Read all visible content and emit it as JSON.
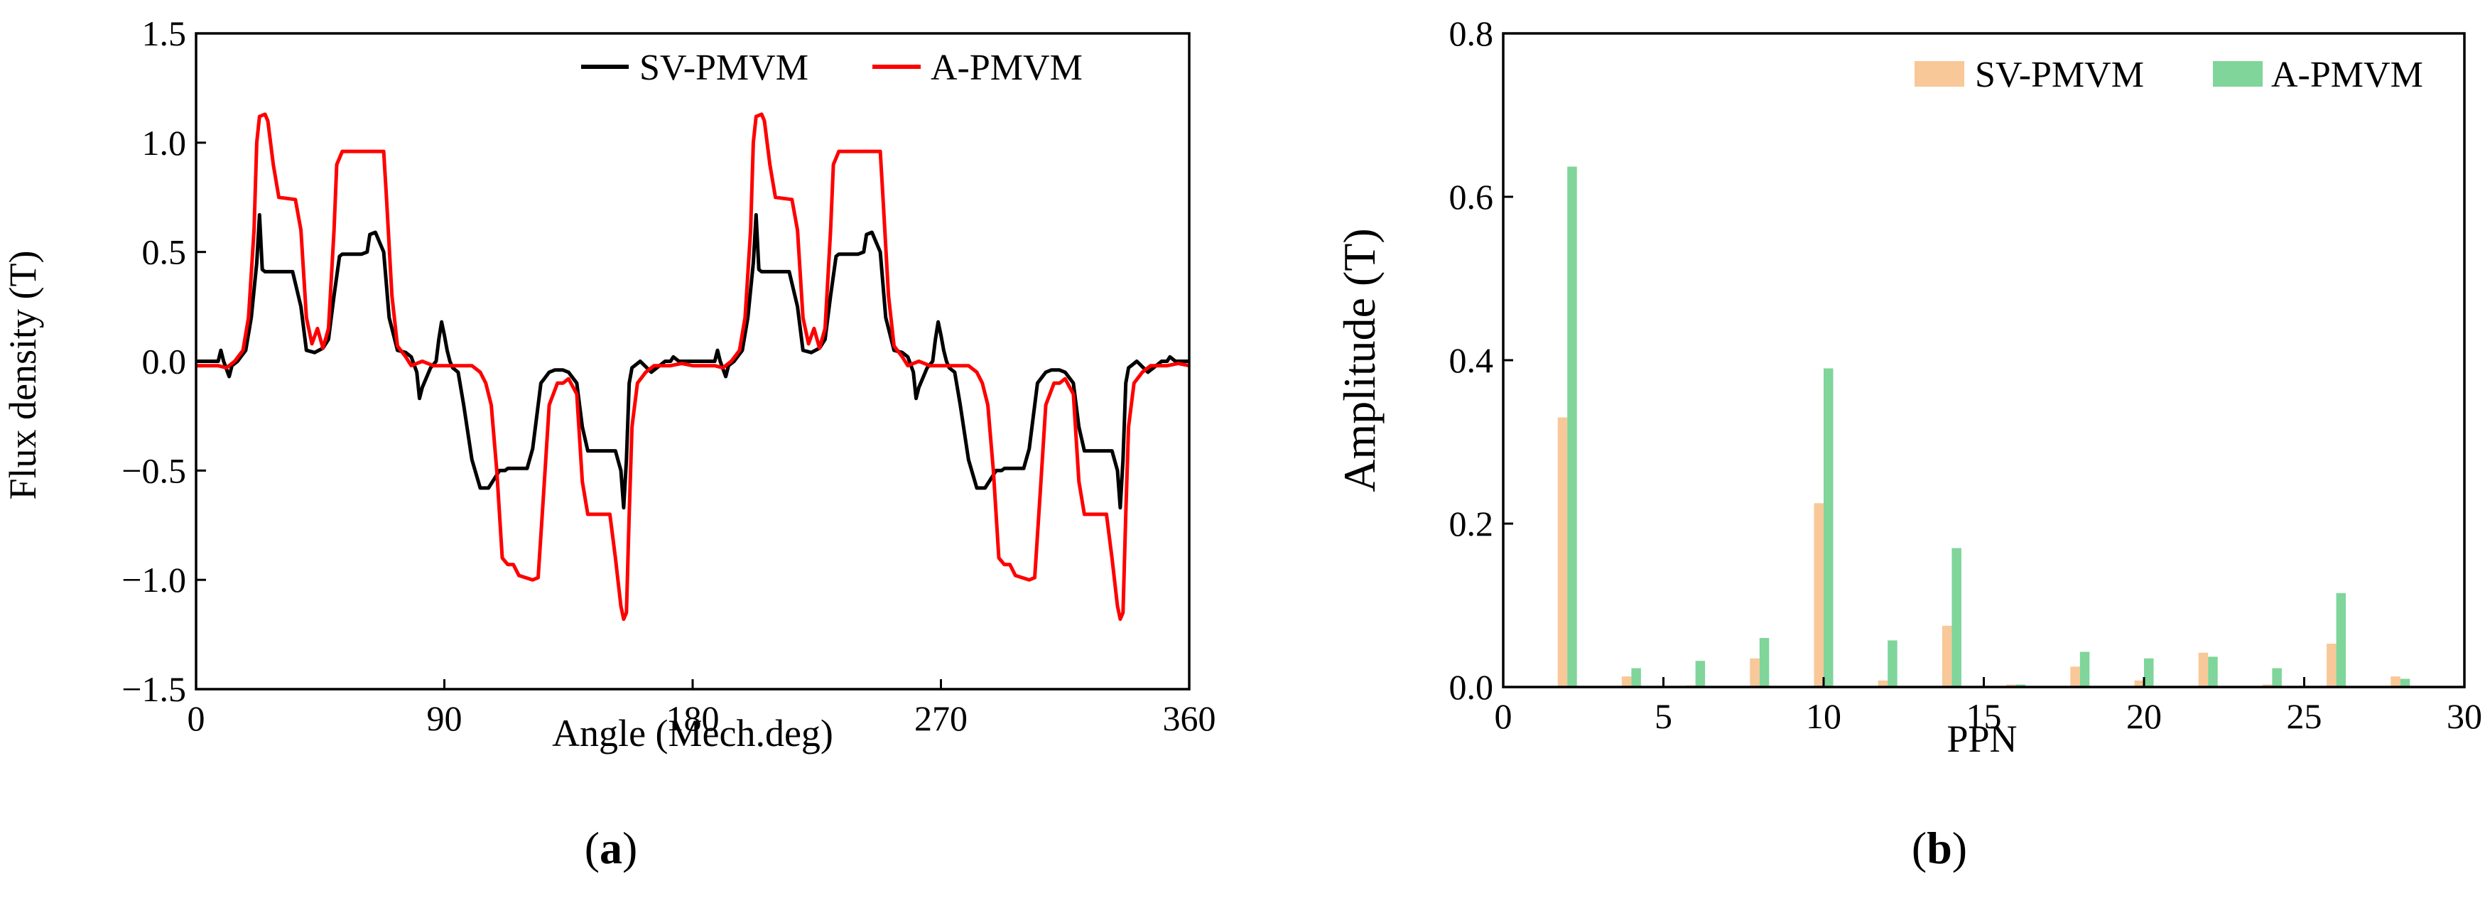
{
  "chart_data": [
    {
      "type": "line",
      "panel_label": "a",
      "xlabel": "Angle (Mech.deg)",
      "ylabel": "Flux density (T)",
      "xlim": [
        0,
        360
      ],
      "ylim": [
        -1.5,
        1.5
      ],
      "xticks": [
        "0",
        "90",
        "180",
        "270",
        "360"
      ],
      "yticks": [
        "1.5",
        "1.0",
        "0.5",
        "0.0",
        "−0.5",
        "−1.0",
        "−1.5"
      ],
      "legend_position": "top-right",
      "series": [
        {
          "name": "SV-PMVM",
          "color": "#000000",
          "x": [
            0,
            8,
            9,
            10,
            12,
            13,
            15,
            18,
            20,
            22,
            23,
            24,
            25,
            27,
            35,
            38,
            40,
            43,
            46,
            48,
            50,
            52,
            53,
            60,
            62,
            63,
            65,
            68,
            70,
            73,
            76,
            78,
            80,
            81,
            82,
            85,
            87,
            88,
            89,
            90,
            91,
            92,
            93,
            95,
            97,
            100,
            103,
            106,
            110,
            112,
            113,
            115,
            120,
            122,
            125,
            128,
            130,
            133,
            135,
            138,
            140,
            142,
            145,
            150,
            152,
            154,
            155,
            156,
            157,
            158,
            161,
            165,
            170,
            172,
            173,
            175,
            180
          ],
          "y": [
            0.0,
            0.0,
            0.05,
            0.0,
            -0.07,
            -0.02,
            0.0,
            0.05,
            0.2,
            0.45,
            0.67,
            0.42,
            0.41,
            0.41,
            0.41,
            0.25,
            0.05,
            0.04,
            0.06,
            0.1,
            0.3,
            0.48,
            0.49,
            0.49,
            0.5,
            0.58,
            0.59,
            0.5,
            0.2,
            0.05,
            0.04,
            0.02,
            -0.05,
            -0.17,
            -0.12,
            -0.03,
            0.0,
            0.1,
            0.18,
            0.12,
            0.05,
            0.0,
            -0.03,
            -0.05,
            -0.2,
            -0.45,
            -0.58,
            -0.58,
            -0.5,
            -0.5,
            -0.49,
            -0.49,
            -0.49,
            -0.4,
            -0.1,
            -0.05,
            -0.04,
            -0.04,
            -0.05,
            -0.1,
            -0.3,
            -0.41,
            -0.41,
            -0.41,
            -0.41,
            -0.5,
            -0.67,
            -0.45,
            -0.1,
            -0.03,
            0.0,
            -0.05,
            0.0,
            0.0,
            0.02,
            0.0,
            0.0
          ]
        },
        {
          "name": "A-PMVM",
          "color": "#ff0000",
          "x": [
            0,
            8,
            11,
            14,
            17,
            19,
            21,
            22,
            23,
            25,
            26,
            28,
            30,
            36,
            38,
            40,
            42,
            44,
            46,
            48,
            50,
            51,
            53,
            60,
            68,
            69,
            71,
            73,
            76,
            78,
            80,
            82,
            84,
            86,
            88,
            91,
            93,
            95,
            97,
            100,
            103,
            105,
            107,
            109,
            111,
            113,
            115,
            117,
            122,
            124,
            126,
            128,
            131,
            133,
            135,
            138,
            140,
            142,
            144,
            146,
            150,
            152,
            154,
            155,
            156,
            157,
            158,
            160,
            163,
            166,
            168,
            172,
            176,
            180
          ],
          "y": [
            -0.02,
            -0.02,
            -0.03,
            0.0,
            0.05,
            0.2,
            0.6,
            1.0,
            1.12,
            1.13,
            1.1,
            0.9,
            0.75,
            0.74,
            0.6,
            0.2,
            0.08,
            0.15,
            0.06,
            0.15,
            0.6,
            0.9,
            0.96,
            0.96,
            0.96,
            0.75,
            0.3,
            0.07,
            0.02,
            -0.02,
            -0.01,
            0.0,
            -0.01,
            -0.02,
            -0.02,
            -0.02,
            -0.02,
            -0.02,
            -0.02,
            -0.02,
            -0.05,
            -0.1,
            -0.2,
            -0.5,
            -0.9,
            -0.93,
            -0.93,
            -0.98,
            -1.0,
            -0.99,
            -0.6,
            -0.2,
            -0.1,
            -0.1,
            -0.08,
            -0.15,
            -0.55,
            -0.7,
            -0.7,
            -0.7,
            -0.7,
            -0.9,
            -1.12,
            -1.18,
            -1.15,
            -0.7,
            -0.3,
            -0.1,
            -0.05,
            -0.02,
            -0.02,
            -0.02,
            -0.01,
            -0.02
          ]
        }
      ]
    },
    {
      "type": "bar",
      "panel_label": "b",
      "xlabel": "PPN",
      "ylabel": "Amplitude (T)",
      "xlim": [
        0,
        30
      ],
      "ylim": [
        0,
        0.8
      ],
      "xticks": [
        "0",
        "5",
        "10",
        "15",
        "20",
        "25",
        "30"
      ],
      "yticks": [
        "0.0",
        "0.2",
        "0.4",
        "0.6",
        "0.8"
      ],
      "legend_position": "top-right",
      "categories": [
        2,
        4,
        6,
        8,
        10,
        12,
        14,
        16,
        18,
        20,
        22,
        24,
        26,
        28
      ],
      "series": [
        {
          "name": "SV-PMVM",
          "color": "#f8c898",
          "values": [
            0.33,
            0.013,
            0.002,
            0.035,
            0.225,
            0.008,
            0.075,
            0.003,
            0.025,
            0.008,
            0.042,
            0.003,
            0.053,
            0.013
          ]
        },
        {
          "name": "A-PMVM",
          "color": "#7fd59a",
          "values": [
            0.637,
            0.023,
            0.032,
            0.06,
            0.39,
            0.057,
            0.17,
            0.003,
            0.043,
            0.035,
            0.037,
            0.023,
            0.115,
            0.01
          ]
        }
      ]
    }
  ]
}
